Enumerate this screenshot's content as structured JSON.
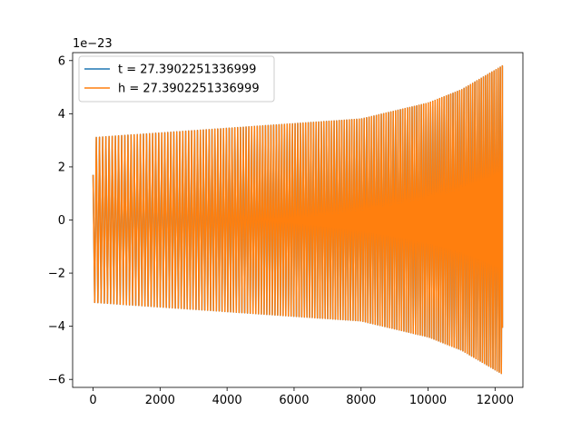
{
  "chart_data": {
    "type": "line",
    "xlim": [
      -611,
      12831
    ],
    "ylim": [
      -6.3,
      6.3
    ],
    "x_ticks": [
      0,
      2000,
      4000,
      6000,
      8000,
      10000,
      12000
    ],
    "x_tick_labels": [
      "0",
      "2000",
      "4000",
      "6000",
      "8000",
      "10000",
      "12000"
    ],
    "y_ticks": [
      -6,
      -4,
      -2,
      0,
      2,
      4,
      6
    ],
    "y_tick_labels": [
      "−6",
      "−4",
      "−2",
      "0",
      "2",
      "4",
      "6"
    ],
    "y_offset_label": "1e−23",
    "legend_position": "upper-left",
    "grid": false,
    "signal": {
      "x_start": 0,
      "x_end": 12220,
      "start_value": 1.7,
      "amplitude_start": 3.1,
      "amplitude_at_8000": 3.8,
      "amplitude_at_10000": 4.4,
      "amplitude_at_11000": 4.9,
      "amplitude_end": 5.8,
      "cycle_length_start": 96,
      "cycle_length_end": 62
    },
    "series": [
      {
        "name": "t = 27.3902251336999",
        "color": "#1f77b4"
      },
      {
        "name": "h = 27.3902251336999",
        "color": "#ff7f0e"
      }
    ]
  }
}
